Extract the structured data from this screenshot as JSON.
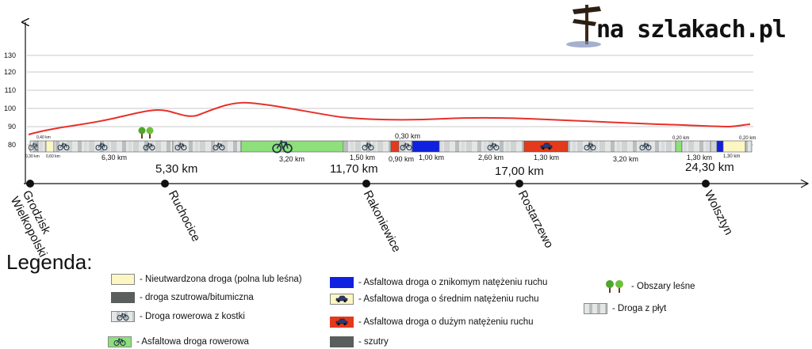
{
  "logo": {
    "text": "na szlakach.pl"
  },
  "yaxis": {
    "ticks": [
      80,
      90,
      100,
      110,
      120,
      130
    ]
  },
  "segments": {
    "tiny_left_1": "0,30 km",
    "tiny_top": "0,40 km",
    "tiny_left_2": "0,60 km",
    "s1": "6,30 km",
    "s2": "3,20 km",
    "s3": "1,50 km",
    "s4_top": "0,30 km",
    "s4": "0,90 km",
    "s5": "1,00 km",
    "s6": "2,60 km",
    "s7": "1,30 km",
    "s8": "3,20 km",
    "s9_top": "0,20 km",
    "s9": "1,30 km",
    "s10_top": "0,20 km",
    "s10": "1,30 km"
  },
  "distances": [
    {
      "label": "5,30 km"
    },
    {
      "label": "11,70 km"
    },
    {
      "label": "17,00 km"
    },
    {
      "label": "24,30 km"
    }
  ],
  "towns": [
    {
      "label": "Grodzisk\nWielkopolski"
    },
    {
      "label": "Ruchocice"
    },
    {
      "label": "Rakoniewice"
    },
    {
      "label": "Rostarzewo"
    },
    {
      "label": "Wolsztyn"
    }
  ],
  "legend": {
    "title": "Legenda:",
    "items": [
      {
        "label": "- Nieutwardzona droga (polna lub leśna)",
        "color": "#fbf6c2"
      },
      {
        "label": "-  droga szutrowa/bitumiczna",
        "color": "#5a5e5c"
      },
      {
        "label": "- Droga rowerowa z kostki",
        "icon": "bicycle-icon"
      },
      {
        "label": "- Asfaltowa droga rowerowa",
        "color": "#8de07a",
        "icon": "bicycle-icon"
      },
      {
        "label": "- Asfaltowa droga o znikomym natężeniu ruchu",
        "color": "#1020e0"
      },
      {
        "label": "- Asfaltowa droga o średnim natężeniu ruchu",
        "icon": "car-icon"
      },
      {
        "label": "- Asfaltowa droga o dużym natężeniu ruchu",
        "color": "#e33a1c",
        "icon": "car-icon"
      },
      {
        "label": "-     szutry",
        "color": "#5a5e5c"
      },
      {
        "label": "- Obszary leśne",
        "icon": "trees-icon"
      },
      {
        "label": "- Droga z płyt",
        "icon": "concrete-slab-icon"
      }
    ]
  }
}
